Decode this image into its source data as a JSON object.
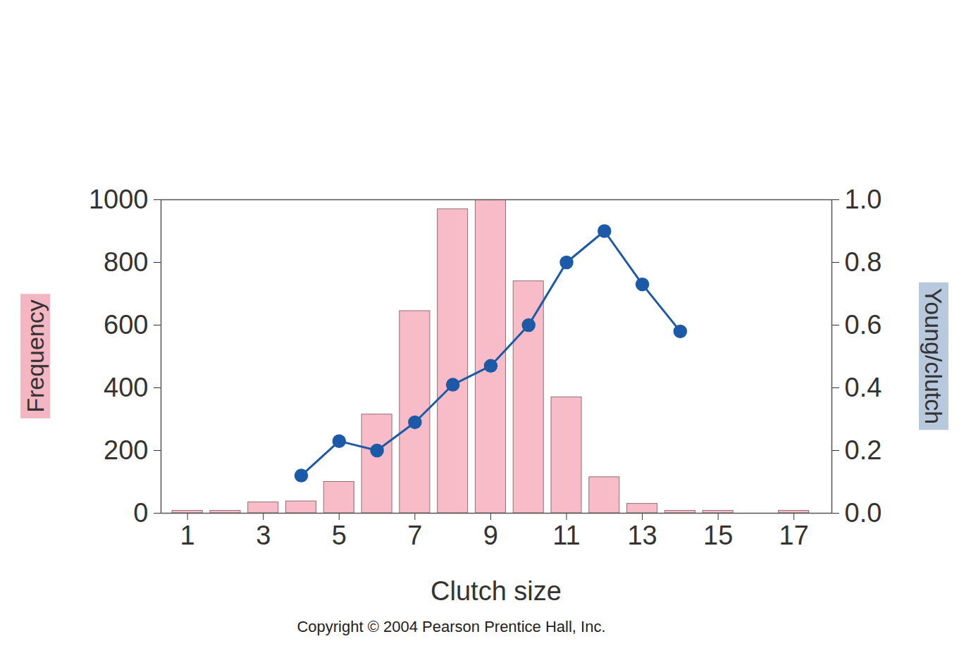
{
  "chart_data": {
    "type": "bar",
    "xlabel": "Clutch size",
    "ylabel": "Frequency",
    "y2label": "Young/clutch",
    "caption": "Copyright © 2004 Pearson Prentice Hall, Inc.",
    "x": [
      1,
      2,
      3,
      4,
      5,
      6,
      7,
      8,
      9,
      10,
      11,
      12,
      13,
      14,
      15,
      16,
      17
    ],
    "series": [
      {
        "type": "bar",
        "color": "#f7bcc8",
        "values": [
          8,
          8,
          35,
          38,
          100,
          315,
          645,
          970,
          1000,
          740,
          370,
          115,
          30,
          8,
          8,
          0,
          8
        ]
      },
      {
        "type": "line",
        "axis": "y2",
        "color": "#1c5aa8",
        "marker": "circle",
        "values": [
          null,
          null,
          null,
          0.12,
          0.23,
          0.2,
          0.29,
          0.41,
          0.47,
          0.6,
          0.8,
          0.9,
          0.73,
          0.58,
          null,
          null,
          null
        ]
      }
    ],
    "xlim": [
      0.3,
      18
    ],
    "xticks": [
      1,
      3,
      5,
      7,
      9,
      11,
      13,
      15,
      17
    ],
    "ylim": [
      0,
      1000
    ],
    "yticks": [
      0,
      200,
      400,
      600,
      800,
      1000
    ],
    "y2lim": [
      0,
      1
    ],
    "y2ticks": [
      {
        "value": 0,
        "label": "0.0"
      },
      {
        "value": 0.2,
        "label": "0.2"
      },
      {
        "value": 0.4,
        "label": "0.4"
      },
      {
        "value": 0.6,
        "label": "0.6"
      },
      {
        "value": 0.8,
        "label": "0.8"
      },
      {
        "value": 1,
        "label": "1.0"
      }
    ]
  }
}
